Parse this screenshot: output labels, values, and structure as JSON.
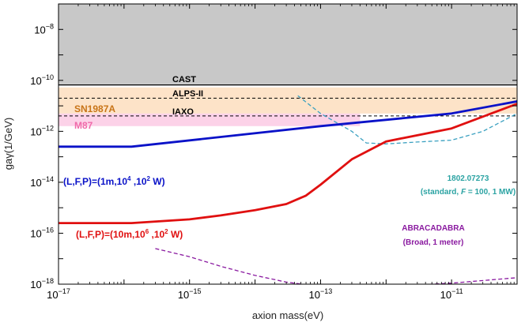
{
  "chart_data": {
    "type": "line",
    "xlabel": "axion mass(eV)",
    "ylabel": "gaγ(1/GeV)",
    "x_scale": "log",
    "y_scale": "log",
    "xlim": [
      1e-17,
      1e-10
    ],
    "ylim": [
      1e-18,
      1e-07
    ],
    "x_ticks": [
      {
        "value": 1e-17,
        "base": "10",
        "exp": "−17"
      },
      {
        "value": 1e-15,
        "base": "10",
        "exp": "−15"
      },
      {
        "value": 1e-13,
        "base": "10",
        "exp": "−13"
      },
      {
        "value": 1e-11,
        "base": "10",
        "exp": "−11"
      }
    ],
    "y_ticks": [
      {
        "value": 1e-18,
        "base": "10",
        "exp": "−18"
      },
      {
        "value": 1e-16,
        "base": "10",
        "exp": "−16"
      },
      {
        "value": 1e-14,
        "base": "10",
        "exp": "−14"
      },
      {
        "value": 1e-12,
        "base": "10",
        "exp": "−12"
      },
      {
        "value": 1e-10,
        "base": "10",
        "exp": "−10"
      },
      {
        "value": 1e-08,
        "base": "10",
        "exp": "−8"
      }
    ],
    "regions": [
      {
        "name": "CAST",
        "y_low": 6.6e-11,
        "y_high": 1e-07,
        "fill": "#c8c8c8",
        "line": "#000000"
      },
      {
        "name": "SN1987A",
        "y_low": 5e-12,
        "y_high": 5.3e-11,
        "fill": "#fde3c8",
        "label_color": "#c87418"
      },
      {
        "name": "M87",
        "y_low": 1.6e-12,
        "y_high": 5e-12,
        "fill": "#fcd2e8",
        "label_color": "#f06aaa"
      }
    ],
    "reference_lines": [
      {
        "name": "ALPS-II",
        "y": 2e-11,
        "style": "dashed",
        "color": "#000000"
      },
      {
        "name": "IAXO",
        "y": 4e-12,
        "style": "dashed",
        "color": "#000000"
      }
    ],
    "series": [
      {
        "name": "(L,F,P)=(1m,10⁴ ,10² W)",
        "label_main": "(L,F,P)=(1m,10",
        "label_sup1": "4",
        "label_mid": " ,10",
        "label_sup2": "2",
        "label_end": " W)",
        "color": "#0a12c8",
        "style": "solid",
        "x": [
          1e-17,
          1.3e-16,
          1e-13,
          1e-11,
          1e-10
        ],
        "y": [
          2.5e-13,
          2.5e-13,
          1.6e-12,
          5e-12,
          1.5e-11
        ]
      },
      {
        "name": "(L,F,P)=(10m,10⁶ ,10² W)",
        "label_main": "(L,F,P)=(10m,10",
        "label_sup1": "6",
        "label_mid": " ,10",
        "label_sup2": "2",
        "label_end": " W)",
        "color": "#e01010",
        "style": "solid",
        "x": [
          1e-17,
          1.3e-16,
          1e-15,
          3e-15,
          1e-14,
          3e-14,
          6e-14,
          1e-13,
          3e-13,
          1e-12,
          1e-11,
          1e-10
        ],
        "y": [
          2.5e-16,
          2.5e-16,
          3.5e-16,
          5e-16,
          8e-16,
          1.4e-15,
          3e-15,
          8e-15,
          8e-14,
          4e-13,
          1.3e-12,
          1.2e-11
        ]
      },
      {
        "name": "1802.07273",
        "label_line1": "1802.07273",
        "label_line2_a": "(standard, ",
        "label_line2_b": "F",
        "label_line2_c": " = 100, 1 MW)",
        "color": "#3aa0c0",
        "style": "dashed",
        "x": [
          4.5e-14,
          1e-13,
          3e-13,
          5e-13,
          1e-12,
          3e-12,
          1e-11,
          3e-11,
          1e-10
        ],
        "y": [
          2.5e-11,
          5e-12,
          1e-12,
          3.5e-13,
          3.2e-13,
          3.8e-13,
          4.5e-13,
          1e-12,
          5e-12
        ]
      },
      {
        "name": "ABRACADABRA",
        "label_line1": "ABRACADABRA",
        "label_line2": "(Broad, 1 meter)",
        "color": "#8a1aa0",
        "style": "dashed",
        "x": [
          3e-16,
          1e-15,
          3e-15,
          1e-14,
          3e-14,
          1e-13,
          3e-13,
          1e-12,
          1e-11,
          1e-10
        ],
        "y": [
          2.5e-17,
          1.2e-17,
          5e-18,
          2.2e-18,
          1.2e-18,
          8e-19,
          7e-19,
          8e-19,
          1.1e-18,
          1.8e-18
        ]
      }
    ]
  }
}
